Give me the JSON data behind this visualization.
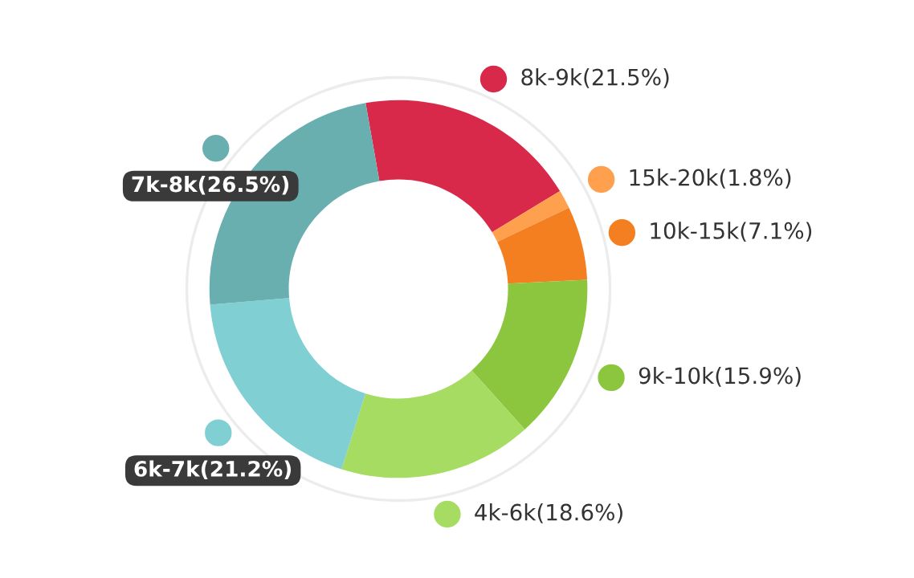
{
  "chart_data": {
    "type": "donut",
    "categories": [
      "8k-9k",
      "15k-20k",
      "10k-15k",
      "9k-10k",
      "4k-6k",
      "6k-7k",
      "7k-8k"
    ],
    "values": [
      21.5,
      1.8,
      7.1,
      15.9,
      18.6,
      21.2,
      26.5
    ],
    "legend": "right",
    "value_labels": [
      "(21.5%)",
      "(1.8%)",
      "(7.1%)",
      "(15.9%)",
      "(18.6%)",
      "(21.2%)",
      "(26.5%)"
    ],
    "colors": [
      "#d9294a",
      "#ffa04f",
      "#f47f20",
      "#8cc63f",
      "#a6dc61",
      "#7fcfd3",
      "#6aafb0"
    ]
  }
}
